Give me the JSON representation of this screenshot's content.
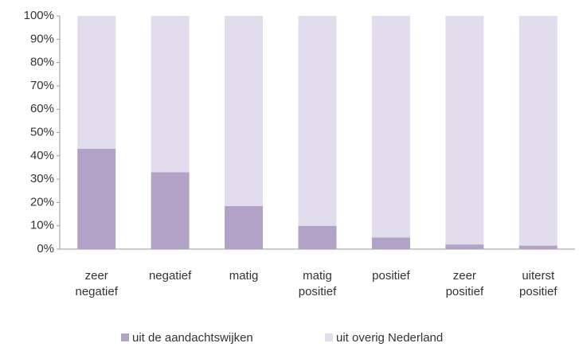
{
  "chart_data": {
    "type": "stacked_bar",
    "categories": [
      "zeer negatief",
      "negatief",
      "matig",
      "matig positief",
      "positief",
      "zeer positief",
      "uiterst positief"
    ],
    "series": [
      {
        "name": "uit de aandachtswijken",
        "color": "#b2a2c7",
        "values": [
          43,
          33,
          18.5,
          10,
          5,
          2,
          1.5
        ]
      },
      {
        "name": "uit overig Nederland",
        "color": "#e2dded",
        "values": [
          57,
          67,
          81.5,
          90,
          95,
          98,
          98.5
        ]
      }
    ],
    "ylim": [
      0,
      100
    ],
    "yticks": [
      {
        "value": 0,
        "label": "0%"
      },
      {
        "value": 10,
        "label": "10%"
      },
      {
        "value": 20,
        "label": "20%"
      },
      {
        "value": 30,
        "label": "30%"
      },
      {
        "value": 40,
        "label": "40%"
      },
      {
        "value": 50,
        "label": "50%"
      },
      {
        "value": 60,
        "label": "60%"
      },
      {
        "value": 70,
        "label": "70%"
      },
      {
        "value": 80,
        "label": "80%"
      },
      {
        "value": 90,
        "label": "90%"
      },
      {
        "value": 100,
        "label": "100%"
      }
    ],
    "legend": "bottom"
  }
}
